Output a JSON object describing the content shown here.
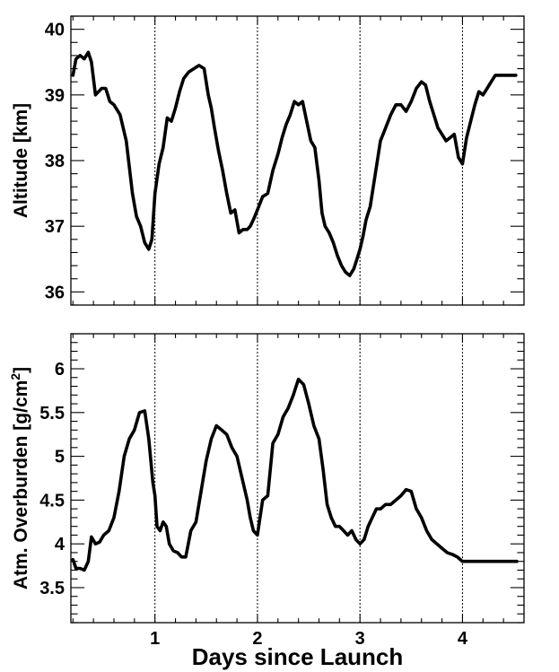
{
  "chart_data": [
    {
      "type": "line",
      "ylabel": "Altitude [km]",
      "xlabel": "",
      "xlim": [
        0.18,
        4.6
      ],
      "ylim": [
        35.8,
        40.2
      ],
      "yticks": [
        36,
        37,
        38,
        39,
        40
      ],
      "ytick_labels": [
        "36",
        "37",
        "38",
        "39",
        "40"
      ],
      "xticks": [
        1,
        2,
        3,
        4
      ],
      "xtick_labels": [],
      "vlines": [
        1,
        2,
        3,
        4
      ],
      "series": [
        {
          "x": [
            0.2,
            0.23,
            0.27,
            0.31,
            0.35,
            0.38,
            0.42,
            0.45,
            0.48,
            0.52,
            0.56,
            0.6,
            0.66,
            0.72,
            0.78,
            0.82,
            0.86,
            0.9,
            0.94,
            0.97,
            1.0,
            1.04,
            1.08,
            1.12,
            1.16,
            1.2,
            1.24,
            1.28,
            1.33,
            1.38,
            1.43,
            1.48,
            1.52,
            1.55,
            1.58,
            1.62,
            1.66,
            1.7,
            1.74,
            1.78,
            1.82,
            1.86,
            1.9,
            1.93,
            1.96,
            2.0,
            2.05,
            2.1,
            2.15,
            2.2,
            2.24,
            2.28,
            2.32,
            2.36,
            2.4,
            2.44,
            2.48,
            2.52,
            2.56,
            2.6,
            2.63,
            2.66,
            2.7,
            2.74,
            2.78,
            2.82,
            2.86,
            2.9,
            2.94,
            2.97,
            3.0,
            3.03,
            3.06,
            3.1,
            3.15,
            3.2,
            3.25,
            3.3,
            3.35,
            3.4,
            3.45,
            3.5,
            3.55,
            3.6,
            3.64,
            3.68,
            3.72,
            3.76,
            3.8,
            3.84,
            3.88,
            3.92,
            3.96,
            4.0,
            4.04,
            4.08,
            4.12,
            4.16,
            4.2,
            4.24,
            4.28,
            4.32,
            4.36,
            4.4,
            4.44,
            4.48,
            4.52
          ],
          "values": [
            39.3,
            39.55,
            39.6,
            39.55,
            39.65,
            39.5,
            39.0,
            39.05,
            39.1,
            39.1,
            38.9,
            38.85,
            38.7,
            38.3,
            37.5,
            37.15,
            37.0,
            36.75,
            36.65,
            36.8,
            37.5,
            37.95,
            38.2,
            38.65,
            38.6,
            38.8,
            39.05,
            39.25,
            39.35,
            39.4,
            39.45,
            39.4,
            39.0,
            38.8,
            38.5,
            38.15,
            37.85,
            37.5,
            37.2,
            37.25,
            36.9,
            36.95,
            36.95,
            37.0,
            37.1,
            37.25,
            37.45,
            37.5,
            37.85,
            38.1,
            38.35,
            38.55,
            38.7,
            38.9,
            38.85,
            38.9,
            38.6,
            38.3,
            38.2,
            37.7,
            37.2,
            37.0,
            36.9,
            36.75,
            36.55,
            36.4,
            36.3,
            36.25,
            36.35,
            36.5,
            36.65,
            36.85,
            37.1,
            37.3,
            37.8,
            38.3,
            38.5,
            38.7,
            38.85,
            38.85,
            38.75,
            38.9,
            39.1,
            39.2,
            39.15,
            38.9,
            38.7,
            38.5,
            38.4,
            38.3,
            38.35,
            38.4,
            38.05,
            37.95,
            38.35,
            38.6,
            38.85,
            39.05,
            39.0,
            39.1,
            39.2,
            39.3,
            39.3,
            39.3,
            39.3,
            39.3,
            39.3
          ]
        }
      ]
    },
    {
      "type": "line",
      "ylabel": "Atm. Overburden [g/cm",
      "ylabel_sup": "2",
      "ylabel_end": "]",
      "xlabel": "Days since Launch",
      "xlim": [
        0.18,
        4.6
      ],
      "ylim": [
        3.1,
        6.4
      ],
      "yticks": [
        3.5,
        4,
        4.5,
        5,
        5.5,
        6
      ],
      "ytick_labels": [
        "3.5",
        "4",
        "4.5",
        "5",
        "5.5",
        "6"
      ],
      "xticks": [
        1,
        2,
        3,
        4
      ],
      "xtick_labels": [
        "1",
        "2",
        "3",
        "4"
      ],
      "vlines": [
        1,
        2,
        3,
        4
      ],
      "series": [
        {
          "x": [
            0.2,
            0.23,
            0.27,
            0.31,
            0.35,
            0.38,
            0.42,
            0.46,
            0.5,
            0.55,
            0.6,
            0.65,
            0.7,
            0.75,
            0.8,
            0.85,
            0.9,
            0.94,
            0.98,
            1.0,
            1.02,
            1.05,
            1.08,
            1.11,
            1.14,
            1.18,
            1.22,
            1.26,
            1.3,
            1.35,
            1.4,
            1.45,
            1.5,
            1.55,
            1.6,
            1.65,
            1.7,
            1.75,
            1.8,
            1.85,
            1.9,
            1.93,
            1.96,
            2.0,
            2.05,
            2.1,
            2.15,
            2.2,
            2.25,
            2.3,
            2.35,
            2.4,
            2.45,
            2.5,
            2.55,
            2.6,
            2.64,
            2.68,
            2.72,
            2.76,
            2.8,
            2.84,
            2.88,
            2.92,
            2.96,
            3.0,
            3.04,
            3.08,
            3.12,
            3.16,
            3.2,
            3.25,
            3.3,
            3.35,
            3.4,
            3.45,
            3.5,
            3.55,
            3.6,
            3.65,
            3.7,
            3.75,
            3.8,
            3.85,
            3.9,
            3.95,
            4.0,
            4.05,
            4.1,
            4.15,
            4.18,
            4.22,
            4.26,
            4.3,
            4.34,
            4.38,
            4.42,
            4.46,
            4.5,
            4.53
          ],
          "values": [
            3.82,
            3.72,
            3.72,
            3.7,
            3.8,
            4.08,
            4.0,
            4.02,
            4.1,
            4.15,
            4.3,
            4.6,
            5.0,
            5.2,
            5.3,
            5.5,
            5.52,
            5.2,
            4.7,
            4.55,
            4.2,
            4.15,
            4.25,
            4.2,
            4.0,
            3.92,
            3.9,
            3.85,
            3.85,
            4.15,
            4.25,
            4.6,
            4.95,
            5.2,
            5.35,
            5.3,
            5.25,
            5.1,
            5.0,
            4.75,
            4.5,
            4.3,
            4.15,
            4.1,
            4.5,
            4.55,
            5.15,
            5.25,
            5.45,
            5.55,
            5.7,
            5.88,
            5.82,
            5.6,
            5.35,
            5.2,
            4.85,
            4.45,
            4.3,
            4.2,
            4.2,
            4.15,
            4.1,
            4.15,
            4.05,
            4.0,
            4.05,
            4.2,
            4.3,
            4.4,
            4.4,
            4.45,
            4.45,
            4.5,
            4.55,
            4.62,
            4.6,
            4.4,
            4.3,
            4.15,
            4.05,
            4.0,
            3.95,
            3.9,
            3.88,
            3.85,
            3.8,
            3.8,
            3.8,
            3.8,
            3.8,
            3.8,
            3.8,
            3.8,
            3.8,
            3.8,
            3.8,
            3.8,
            3.8,
            3.8
          ]
        }
      ]
    }
  ]
}
